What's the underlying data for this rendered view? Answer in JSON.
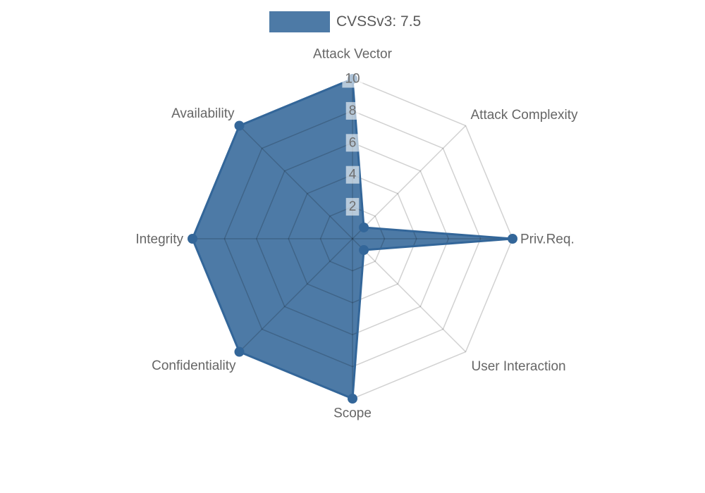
{
  "page": {
    "background": "#ffffff"
  },
  "chart_data": {
    "type": "radar",
    "title": "",
    "categories": [
      "Attack Vector",
      "Attack Complexity",
      "Priv.Req.",
      "User Interaction",
      "Scope",
      "Confidentiality",
      "Integrity",
      "Availability"
    ],
    "series": [
      {
        "name": "CVSSv3: 7.5",
        "values": [
          10,
          1,
          10,
          1,
          10,
          10,
          10,
          10
        ]
      }
    ],
    "rticks": [
      2,
      4,
      6,
      8,
      10
    ],
    "rmin": 0,
    "rmax": 10,
    "grid": true,
    "legend_position": "top-center",
    "colors": {
      "series_fill": "rgba(51,102,153,0.87)",
      "series_stroke": "#336699",
      "point_fill": "#336699",
      "grid_line": "rgba(0,0,0,0.18)",
      "tick_text": "#6e6e6e",
      "tick_backdrop": "rgba(255,255,255,0.6)",
      "axis_label": "#666666",
      "legend_text": "#595959"
    }
  }
}
